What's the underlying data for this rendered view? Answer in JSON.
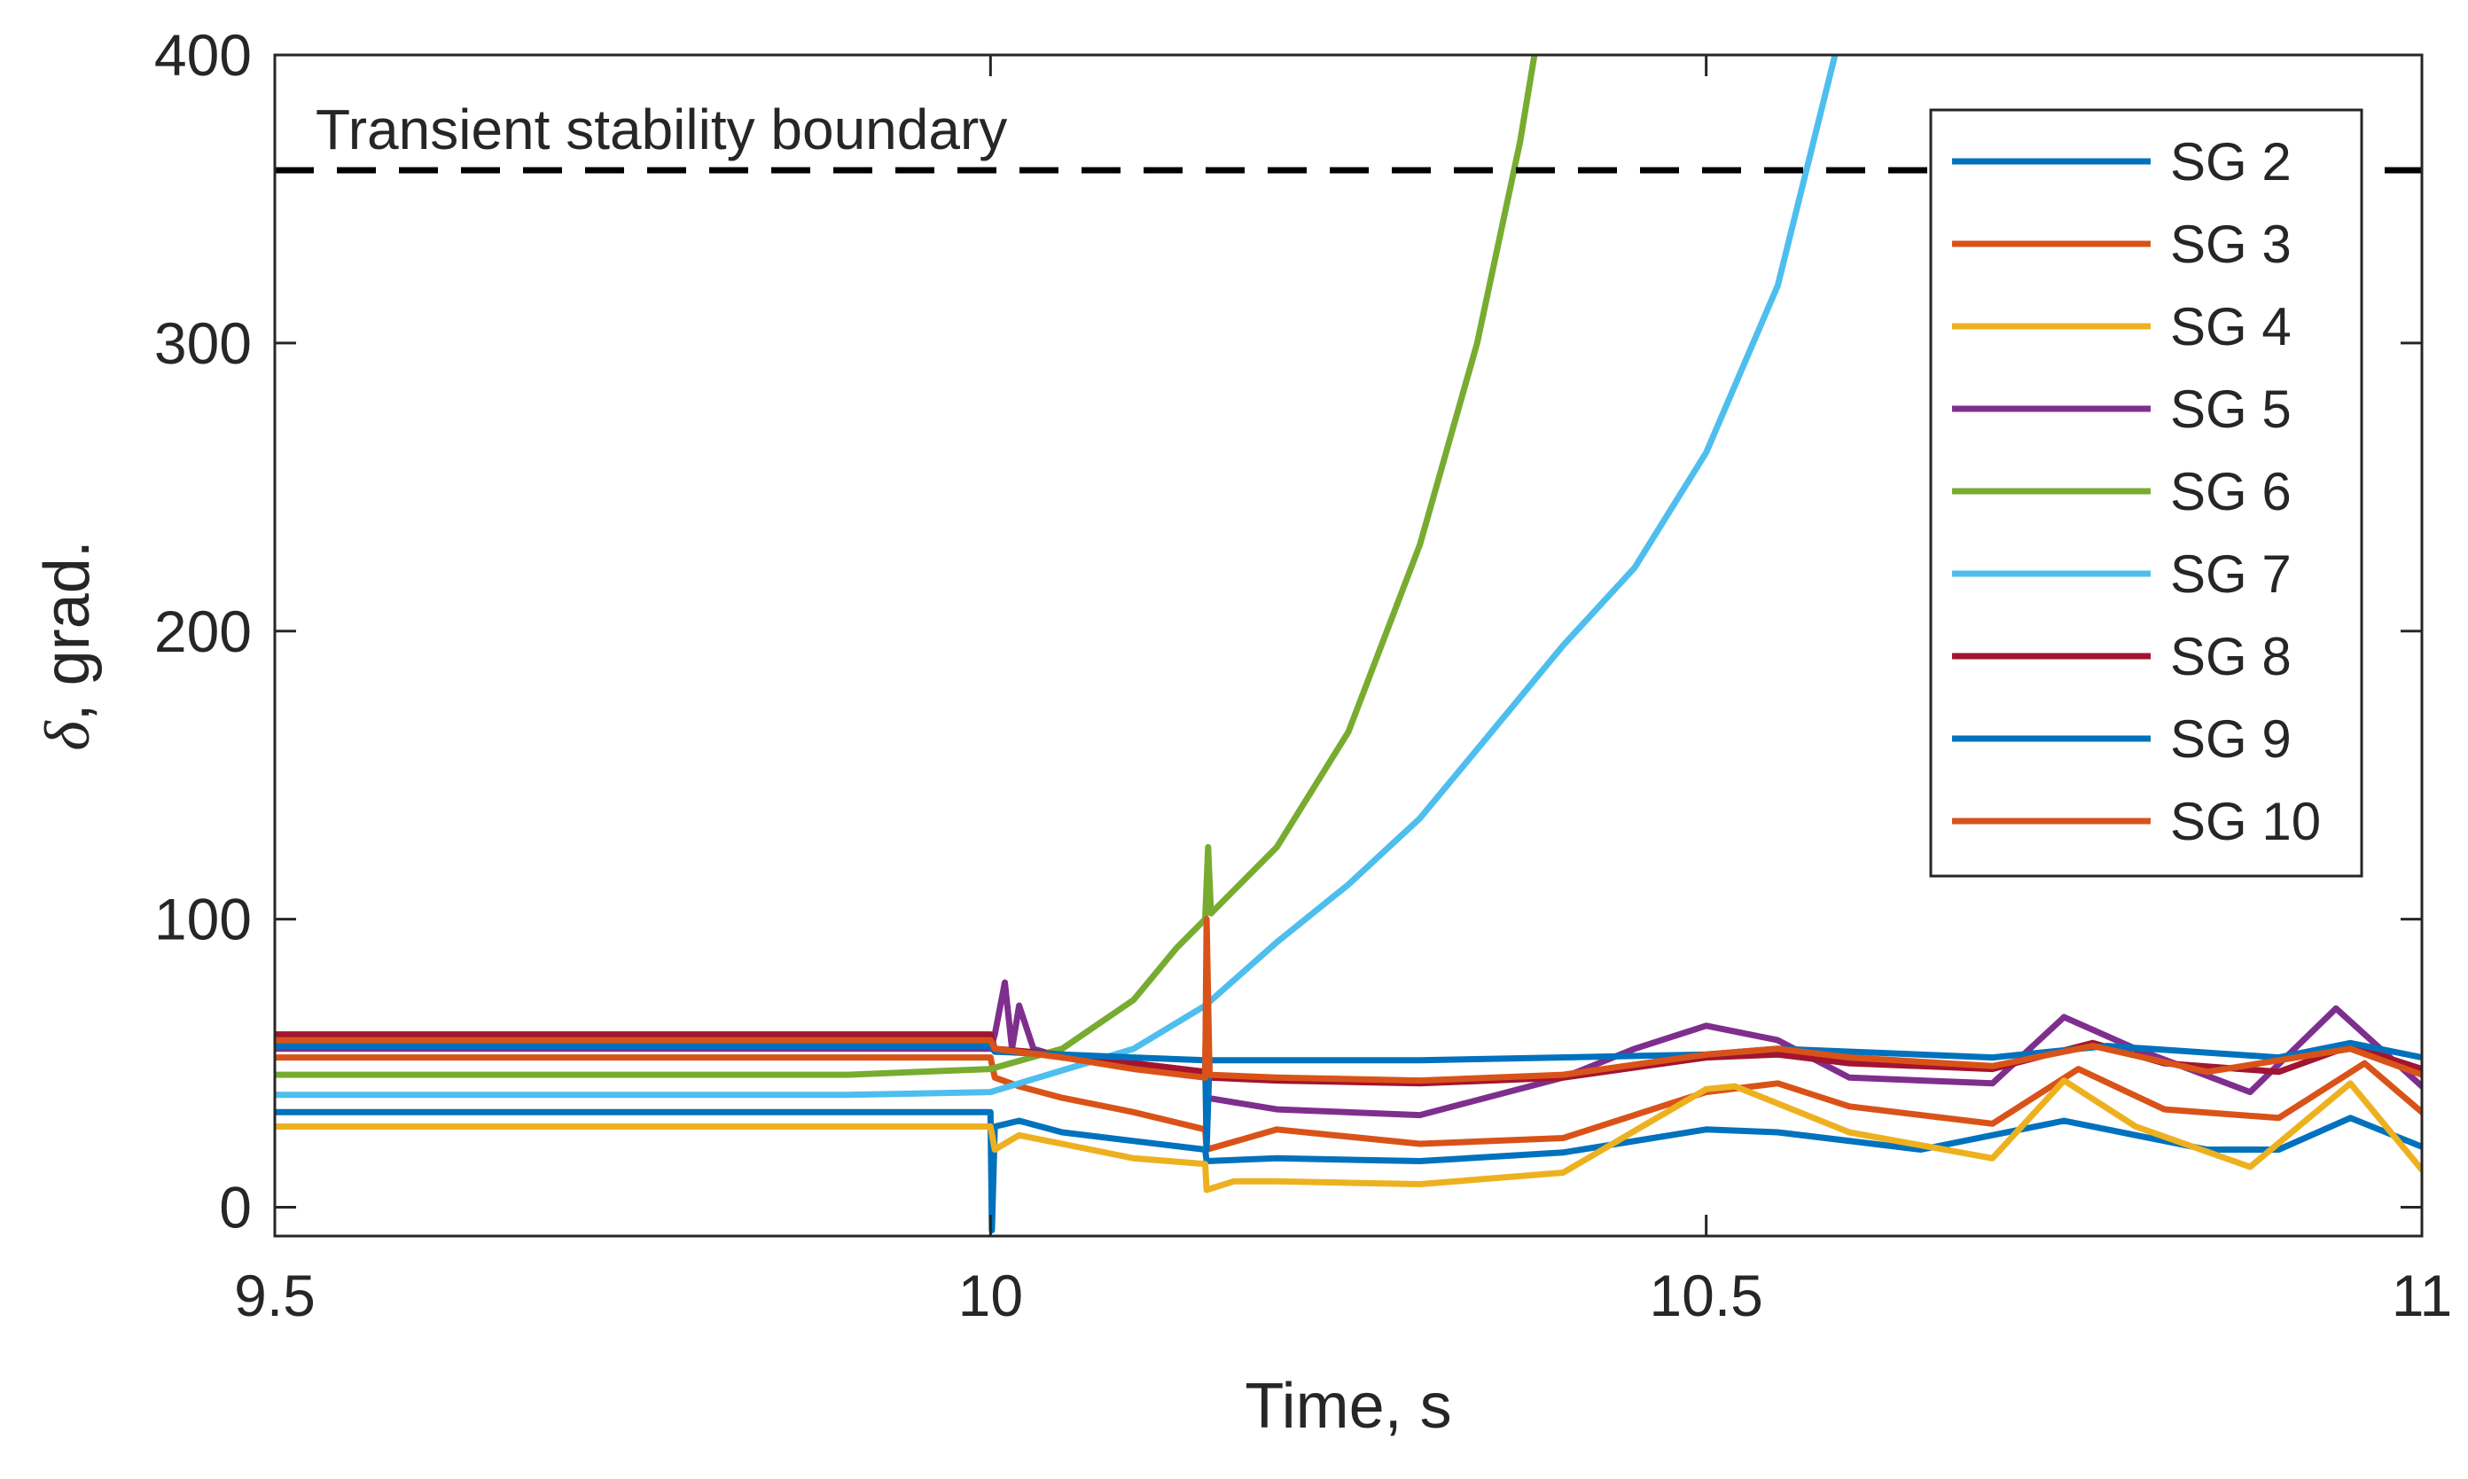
{
  "chart_data": {
    "type": "line",
    "title": "",
    "xlabel": "Time, s",
    "ylabel_symbol": "δ",
    "ylabel_rest": ", grad.",
    "xlim": [
      9.5,
      11
    ],
    "ylim": [
      -10,
      400
    ],
    "xticks": [
      9.5,
      10,
      10.5,
      11
    ],
    "xtick_labels": [
      "9.5",
      "10",
      "10.5",
      "11"
    ],
    "yticks": [
      0,
      100,
      200,
      300,
      400
    ],
    "ytick_labels": [
      "0",
      "100",
      "200",
      "300",
      "400"
    ],
    "grid": false,
    "legend_position": "top-right",
    "annotation": {
      "text": "Transient stability boundary",
      "y": 360,
      "style": "dashed",
      "color": "#000000"
    },
    "series": [
      {
        "name": "SG 2",
        "color": "#0072BD",
        "points": [
          [
            9.5,
            33
          ],
          [
            10,
            33
          ],
          [
            10.001,
            -8
          ],
          [
            10.003,
            28
          ],
          [
            10.02,
            30
          ],
          [
            10.05,
            26
          ],
          [
            10.1,
            23
          ],
          [
            10.15,
            20
          ],
          [
            10.151,
            16
          ],
          [
            10.2,
            17
          ],
          [
            10.3,
            16
          ],
          [
            10.4,
            19
          ],
          [
            10.5,
            27
          ],
          [
            10.55,
            26
          ],
          [
            10.65,
            20
          ],
          [
            10.75,
            30
          ],
          [
            10.85,
            20
          ],
          [
            10.9,
            20
          ],
          [
            10.95,
            31
          ],
          [
            11,
            21
          ]
        ]
      },
      {
        "name": "SG 3",
        "color": "#D95319",
        "points": [
          [
            9.5,
            52
          ],
          [
            10,
            52
          ],
          [
            10.003,
            45
          ],
          [
            10.02,
            42
          ],
          [
            10.05,
            38
          ],
          [
            10.1,
            33
          ],
          [
            10.15,
            27
          ],
          [
            10.151,
            20
          ],
          [
            10.2,
            27
          ],
          [
            10.3,
            22
          ],
          [
            10.4,
            24
          ],
          [
            10.5,
            40
          ],
          [
            10.55,
            43
          ],
          [
            10.6,
            35
          ],
          [
            10.7,
            29
          ],
          [
            10.76,
            48
          ],
          [
            10.82,
            34
          ],
          [
            10.9,
            31
          ],
          [
            10.96,
            50
          ],
          [
            11,
            33
          ]
        ]
      },
      {
        "name": "SG 4",
        "color": "#EDB120",
        "points": [
          [
            9.5,
            28
          ],
          [
            10,
            28
          ],
          [
            10.003,
            20
          ],
          [
            10.02,
            25
          ],
          [
            10.05,
            22
          ],
          [
            10.1,
            17
          ],
          [
            10.15,
            15
          ],
          [
            10.151,
            6
          ],
          [
            10.17,
            9
          ],
          [
            10.2,
            9
          ],
          [
            10.3,
            8
          ],
          [
            10.4,
            12
          ],
          [
            10.5,
            41
          ],
          [
            10.52,
            42
          ],
          [
            10.6,
            26
          ],
          [
            10.7,
            17
          ],
          [
            10.75,
            44
          ],
          [
            10.8,
            28
          ],
          [
            10.88,
            14
          ],
          [
            10.95,
            43
          ],
          [
            11,
            13
          ]
        ]
      },
      {
        "name": "SG 5",
        "color": "#7E2F8E",
        "points": [
          [
            9.5,
            55
          ],
          [
            10,
            55
          ],
          [
            10.003,
            60
          ],
          [
            10.01,
            78
          ],
          [
            10.015,
            55
          ],
          [
            10.02,
            70
          ],
          [
            10.03,
            55
          ],
          [
            10.05,
            52
          ],
          [
            10.1,
            50
          ],
          [
            10.15,
            47
          ],
          [
            10.151,
            38
          ],
          [
            10.2,
            34
          ],
          [
            10.3,
            32
          ],
          [
            10.4,
            45
          ],
          [
            10.45,
            55
          ],
          [
            10.5,
            63
          ],
          [
            10.55,
            58
          ],
          [
            10.6,
            45
          ],
          [
            10.7,
            43
          ],
          [
            10.75,
            66
          ],
          [
            10.8,
            55
          ],
          [
            10.88,
            40
          ],
          [
            10.94,
            69
          ],
          [
            11,
            42
          ]
        ]
      },
      {
        "name": "SG 6",
        "color": "#77AC30",
        "points": [
          [
            9.5,
            46
          ],
          [
            9.9,
            46
          ],
          [
            10,
            48
          ],
          [
            10.05,
            55
          ],
          [
            10.1,
            72
          ],
          [
            10.13,
            90
          ],
          [
            10.15,
            100
          ],
          [
            10.152,
            125
          ],
          [
            10.154,
            102
          ],
          [
            10.2,
            125
          ],
          [
            10.25,
            165
          ],
          [
            10.3,
            230
          ],
          [
            10.34,
            300
          ],
          [
            10.37,
            370
          ],
          [
            10.38,
            400
          ]
        ]
      },
      {
        "name": "SG 7",
        "color": "#4DBEEE",
        "points": [
          [
            9.5,
            39
          ],
          [
            9.9,
            39
          ],
          [
            10,
            40
          ],
          [
            10.1,
            55
          ],
          [
            10.15,
            70
          ],
          [
            10.2,
            92
          ],
          [
            10.25,
            112
          ],
          [
            10.3,
            135
          ],
          [
            10.35,
            165
          ],
          [
            10.4,
            195
          ],
          [
            10.45,
            222
          ],
          [
            10.5,
            262
          ],
          [
            10.55,
            320
          ],
          [
            10.59,
            400
          ]
        ]
      },
      {
        "name": "SG 8",
        "color": "#A2142F",
        "points": [
          [
            9.5,
            60
          ],
          [
            10,
            60
          ],
          [
            10.003,
            55
          ],
          [
            10.05,
            53
          ],
          [
            10.1,
            50
          ],
          [
            10.15,
            47
          ],
          [
            10.151,
            80
          ],
          [
            10.153,
            45
          ],
          [
            10.2,
            44
          ],
          [
            10.3,
            43
          ],
          [
            10.4,
            45
          ],
          [
            10.5,
            52
          ],
          [
            10.55,
            53
          ],
          [
            10.6,
            50
          ],
          [
            10.7,
            48
          ],
          [
            10.77,
            57
          ],
          [
            10.82,
            50
          ],
          [
            10.9,
            47
          ],
          [
            10.95,
            56
          ],
          [
            11,
            48
          ]
        ]
      },
      {
        "name": "SG 9",
        "color": "#0072BD",
        "points": [
          [
            9.5,
            56
          ],
          [
            10,
            56
          ],
          [
            10.003,
            54
          ],
          [
            10.05,
            53
          ],
          [
            10.1,
            52
          ],
          [
            10.15,
            51
          ],
          [
            10.151,
            20
          ],
          [
            10.153,
            51
          ],
          [
            10.3,
            51
          ],
          [
            10.5,
            53
          ],
          [
            10.55,
            55
          ],
          [
            10.7,
            52
          ],
          [
            10.78,
            56
          ],
          [
            10.9,
            52
          ],
          [
            10.95,
            57
          ],
          [
            11,
            52
          ]
        ]
      },
      {
        "name": "SG 10",
        "color": "#D95319",
        "points": [
          [
            9.5,
            58
          ],
          [
            10,
            58
          ],
          [
            10.003,
            55
          ],
          [
            10.05,
            52
          ],
          [
            10.1,
            48
          ],
          [
            10.15,
            45
          ],
          [
            10.151,
            100
          ],
          [
            10.153,
            46
          ],
          [
            10.2,
            45
          ],
          [
            10.3,
            44
          ],
          [
            10.4,
            46
          ],
          [
            10.5,
            53
          ],
          [
            10.55,
            55
          ],
          [
            10.6,
            52
          ],
          [
            10.7,
            49
          ],
          [
            10.77,
            56
          ],
          [
            10.85,
            47
          ],
          [
            10.95,
            55
          ],
          [
            11,
            46
          ]
        ]
      }
    ]
  }
}
